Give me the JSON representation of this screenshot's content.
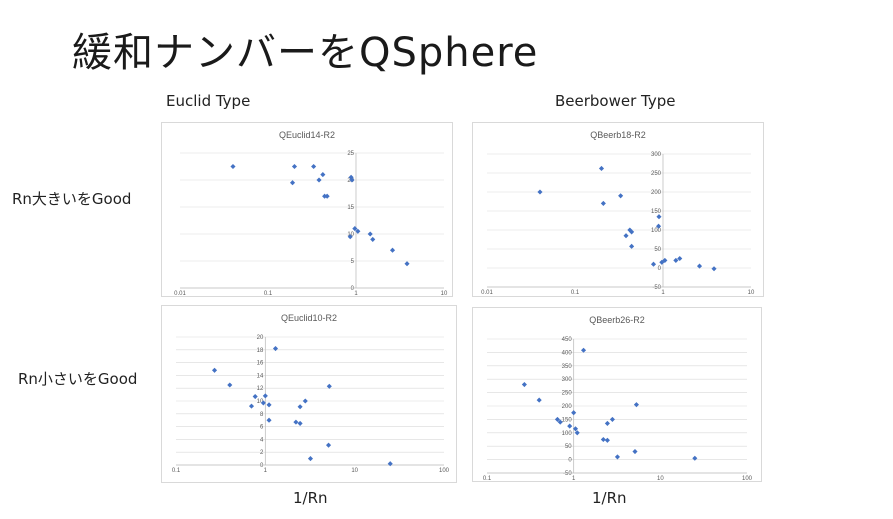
{
  "slide": {
    "title": "緩和ナンバーをQSphere"
  },
  "columns": {
    "left": "Euclid Type",
    "right": "Beerbower Type"
  },
  "rows": {
    "top": "Rn大きいをGood",
    "bottom": "Rn小さいをGood"
  },
  "x_captions": {
    "left": "1/Rn",
    "right": "1/Rn"
  },
  "colors": {
    "point": "#4472c4",
    "grid": "#d9d9d9"
  },
  "chart_data": [
    {
      "id": "euclid14",
      "type": "scatter",
      "title": "QEuclid14-R2",
      "x_scale": "log",
      "xlim": [
        0.01,
        10
      ],
      "x_ticks": [
        0.01,
        0.1,
        1,
        10
      ],
      "x_tick_labels": [
        "0.01",
        "0.1",
        "1",
        "10"
      ],
      "ylim": [
        0,
        25
      ],
      "y_ticks": [
        0,
        5,
        10,
        15,
        20,
        25
      ],
      "y_tick_labels": [
        "0",
        "5",
        "10",
        "15",
        "20",
        "25"
      ],
      "grid": true,
      "points": [
        {
          "x": 0.04,
          "y": 22.5
        },
        {
          "x": 0.2,
          "y": 22.5
        },
        {
          "x": 0.33,
          "y": 22.5
        },
        {
          "x": 0.19,
          "y": 19.5
        },
        {
          "x": 0.38,
          "y": 20
        },
        {
          "x": 0.42,
          "y": 21
        },
        {
          "x": 0.44,
          "y": 17
        },
        {
          "x": 0.47,
          "y": 17
        },
        {
          "x": 0.88,
          "y": 20.5
        },
        {
          "x": 0.9,
          "y": 20
        },
        {
          "x": 0.86,
          "y": 9.5
        },
        {
          "x": 0.97,
          "y": 11
        },
        {
          "x": 1.05,
          "y": 10.5
        },
        {
          "x": 1.45,
          "y": 10
        },
        {
          "x": 1.55,
          "y": 9
        },
        {
          "x": 2.6,
          "y": 7
        },
        {
          "x": 3.8,
          "y": 4.5
        }
      ]
    },
    {
      "id": "beerb18",
      "type": "scatter",
      "title": "QBeerb18-R2",
      "x_scale": "log",
      "xlim": [
        0.01,
        10
      ],
      "x_ticks": [
        0.01,
        0.1,
        1,
        10
      ],
      "x_tick_labels": [
        "0.01",
        "0.1",
        "1",
        "10"
      ],
      "ylim": [
        -50,
        300
      ],
      "y_ticks": [
        -50,
        0,
        50,
        100,
        150,
        200,
        250,
        300
      ],
      "y_tick_labels": [
        "-50",
        "0",
        "50",
        "100",
        "150",
        "200",
        "250",
        "300"
      ],
      "grid": true,
      "points": [
        {
          "x": 0.04,
          "y": 200
        },
        {
          "x": 0.2,
          "y": 262
        },
        {
          "x": 0.21,
          "y": 170
        },
        {
          "x": 0.33,
          "y": 190
        },
        {
          "x": 0.38,
          "y": 85
        },
        {
          "x": 0.42,
          "y": 100
        },
        {
          "x": 0.44,
          "y": 95
        },
        {
          "x": 0.44,
          "y": 57
        },
        {
          "x": 0.89,
          "y": 110
        },
        {
          "x": 0.9,
          "y": 135
        },
        {
          "x": 0.78,
          "y": 10
        },
        {
          "x": 0.97,
          "y": 15
        },
        {
          "x": 1.05,
          "y": 20
        },
        {
          "x": 1.4,
          "y": 20
        },
        {
          "x": 1.55,
          "y": 25
        },
        {
          "x": 2.6,
          "y": 5
        },
        {
          "x": 3.8,
          "y": -2
        }
      ]
    },
    {
      "id": "euclid10",
      "type": "scatter",
      "title": "QEuclid10-R2",
      "x_scale": "log",
      "xlim": [
        0.1,
        100
      ],
      "x_ticks": [
        0.1,
        1,
        10,
        100
      ],
      "x_tick_labels": [
        "0.1",
        "1",
        "10",
        "100"
      ],
      "ylim": [
        0,
        20
      ],
      "y_ticks": [
        0,
        2,
        4,
        6,
        8,
        10,
        12,
        14,
        16,
        18,
        20
      ],
      "y_tick_labels": [
        "0",
        "2",
        "4",
        "6",
        "8",
        "10",
        "12",
        "14",
        "16",
        "18",
        "20"
      ],
      "grid": true,
      "points": [
        {
          "x": 0.27,
          "y": 14.8
        },
        {
          "x": 0.4,
          "y": 12.5
        },
        {
          "x": 0.7,
          "y": 9.2
        },
        {
          "x": 0.77,
          "y": 10.7
        },
        {
          "x": 0.95,
          "y": 9.7
        },
        {
          "x": 1.0,
          "y": 10.8
        },
        {
          "x": 1.1,
          "y": 9.4
        },
        {
          "x": 1.1,
          "y": 7
        },
        {
          "x": 1.3,
          "y": 18.2
        },
        {
          "x": 2.2,
          "y": 6.7
        },
        {
          "x": 2.45,
          "y": 6.5
        },
        {
          "x": 2.45,
          "y": 9.1
        },
        {
          "x": 2.8,
          "y": 10
        },
        {
          "x": 3.2,
          "y": 1
        },
        {
          "x": 5.1,
          "y": 3.1
        },
        {
          "x": 5.2,
          "y": 12.3
        },
        {
          "x": 25,
          "y": 0.2
        }
      ]
    },
    {
      "id": "beerb26",
      "type": "scatter",
      "title": "QBeerb26-R2",
      "x_scale": "log",
      "xlim": [
        0.1,
        100
      ],
      "x_ticks": [
        0.1,
        1,
        10,
        100
      ],
      "x_tick_labels": [
        "0.1",
        "1",
        "10",
        "100"
      ],
      "ylim": [
        -50,
        450
      ],
      "y_ticks": [
        -50,
        0,
        50,
        100,
        150,
        200,
        250,
        300,
        350,
        400,
        450
      ],
      "y_tick_labels": [
        "-50",
        "0",
        "50",
        "100",
        "150",
        "200",
        "250",
        "300",
        "350",
        "400",
        "450"
      ],
      "grid": true,
      "points": [
        {
          "x": 0.27,
          "y": 280
        },
        {
          "x": 0.4,
          "y": 222
        },
        {
          "x": 0.65,
          "y": 150
        },
        {
          "x": 0.7,
          "y": 140
        },
        {
          "x": 0.9,
          "y": 125
        },
        {
          "x": 1.0,
          "y": 175
        },
        {
          "x": 1.05,
          "y": 115
        },
        {
          "x": 1.1,
          "y": 100
        },
        {
          "x": 1.3,
          "y": 408
        },
        {
          "x": 2.2,
          "y": 75
        },
        {
          "x": 2.45,
          "y": 72
        },
        {
          "x": 2.45,
          "y": 135
        },
        {
          "x": 2.8,
          "y": 150
        },
        {
          "x": 3.2,
          "y": 10
        },
        {
          "x": 5.1,
          "y": 30
        },
        {
          "x": 5.3,
          "y": 205
        },
        {
          "x": 25,
          "y": 5
        }
      ]
    }
  ]
}
